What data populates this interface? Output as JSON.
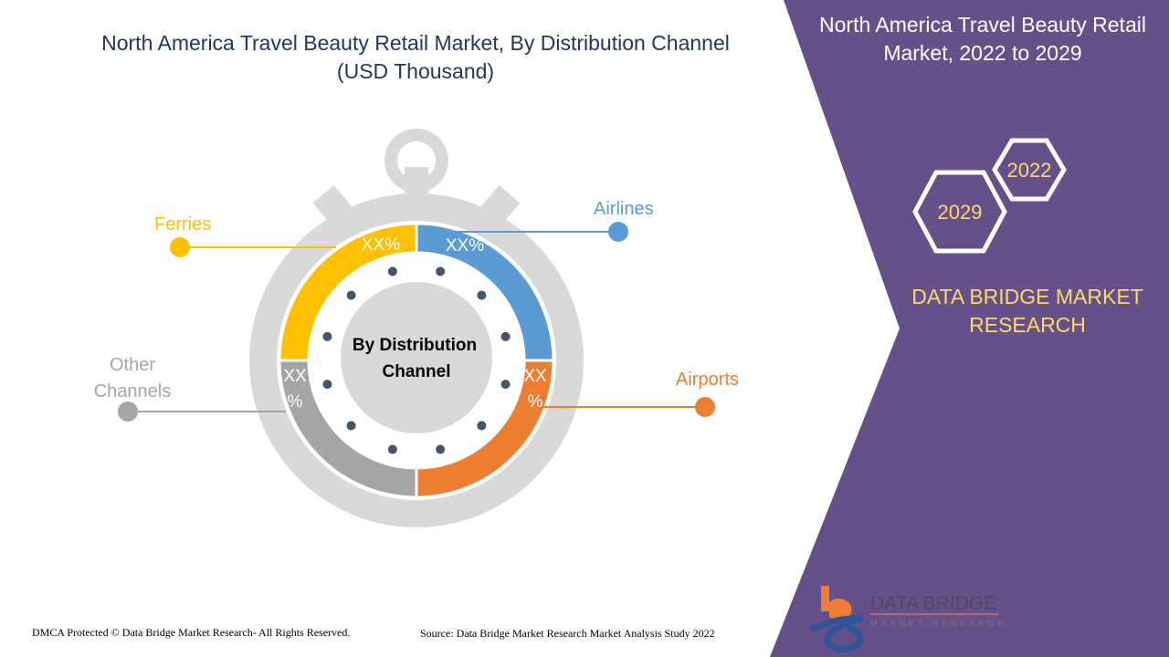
{
  "header": {
    "title": "North America Travel Beauty Retail Market, By Distribution Channel (USD Thousand)"
  },
  "side_panel": {
    "title": "North America Travel Beauty Retail Market, 2022 to 2029",
    "year_start": "2022",
    "year_end": "2029",
    "brand": "DATA BRIDGE MARKET RESEARCH",
    "logo_text": "DATA BRIDGE",
    "logo_subtext": "MARKET RESEARCH"
  },
  "colors": {
    "purple": "#65508a",
    "blue": "#5b9bd5",
    "orange": "#ed7d31",
    "yellow": "#ffc000",
    "gray": "#a5a5a5"
  },
  "chart_data": {
    "type": "pie",
    "title": "North America Travel Beauty Retail Market, By Distribution Channel (USD Thousand)",
    "center_label": "By Distribution Channel",
    "segments": [
      {
        "name": "Airlines",
        "label": "XX%",
        "share": 25,
        "color": "#5b9bd5"
      },
      {
        "name": "Airports",
        "label": "XX%",
        "share": 25,
        "color": "#ed7d31"
      },
      {
        "name": "Other Channels",
        "label": "XX%",
        "share": 25,
        "color": "#a5a5a5"
      },
      {
        "name": "Ferries",
        "label": "XX%",
        "share": 25,
        "color": "#ffc000"
      }
    ]
  },
  "footer": {
    "left": "DMCA Protected © Data Bridge Market Research- All Rights Reserved.",
    "right": "Source: Data Bridge Market Research Market Analysis Study 2022"
  }
}
